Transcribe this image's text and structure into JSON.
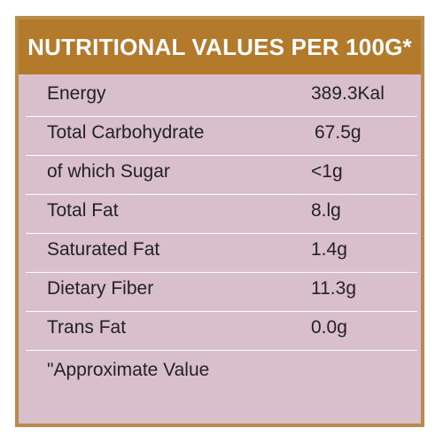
{
  "header": {
    "title": "NUTRITIONAL VALUES PER 100G*"
  },
  "rows": [
    {
      "name": "Energy",
      "value": "389.3Kal"
    },
    {
      "name": "Total Carbohydrate",
      "value": "67.5g"
    },
    {
      "name": "of which Sugar",
      "value": "<1g"
    },
    {
      "name": "Total Fat",
      "value": "8.lg"
    },
    {
      "name": "Saturated Fat",
      "value": "1.4g"
    },
    {
      "name": "Dietary Fiber",
      "value": "11.3g"
    },
    {
      "name": "Trans Fat",
      "value": "0.0g"
    }
  ],
  "footnote": "\"Approximate Value",
  "colors": {
    "header_bg": "#b47a2c",
    "panel_bg": "#d9bfcc",
    "border": "#b98a4a",
    "divider": "#ffffff"
  }
}
